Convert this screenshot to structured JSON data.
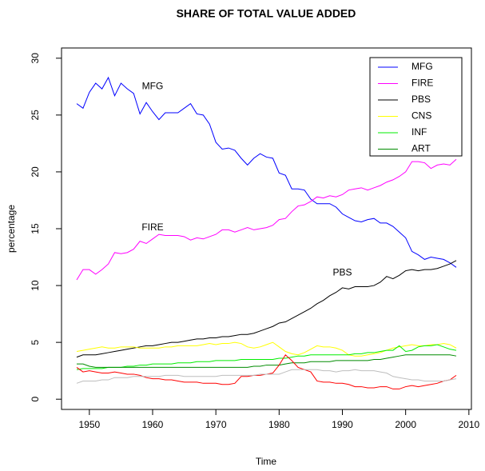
{
  "chart_data": {
    "type": "line",
    "title": "SHARE OF TOTAL VALUE ADDED",
    "x_label": "Time",
    "y_label": "percentage",
    "x": [
      1948,
      1949,
      1950,
      1951,
      1952,
      1953,
      1954,
      1955,
      1956,
      1957,
      1958,
      1959,
      1960,
      1961,
      1962,
      1963,
      1964,
      1965,
      1966,
      1967,
      1968,
      1969,
      1970,
      1971,
      1972,
      1973,
      1974,
      1975,
      1976,
      1977,
      1978,
      1979,
      1980,
      1981,
      1982,
      1983,
      1984,
      1985,
      1986,
      1987,
      1988,
      1989,
      1990,
      1991,
      1992,
      1993,
      1994,
      1995,
      1996,
      1997,
      1998,
      1999,
      2000,
      2001,
      2002,
      2003,
      2004,
      2005,
      2006,
      2007,
      2008
    ],
    "series": [
      {
        "name": "MFG",
        "color": "#0000ff",
        "values": [
          26.0,
          25.6,
          27.0,
          27.8,
          27.3,
          28.3,
          26.7,
          27.8,
          27.3,
          26.9,
          25.1,
          26.1,
          25.3,
          24.6,
          25.2,
          25.2,
          25.2,
          25.6,
          26.0,
          25.1,
          25.0,
          24.2,
          22.6,
          22.0,
          22.1,
          21.9,
          21.2,
          20.6,
          21.2,
          21.6,
          21.3,
          21.2,
          19.9,
          19.7,
          18.5,
          18.5,
          18.4,
          17.6,
          17.2,
          17.2,
          17.2,
          16.9,
          16.3,
          16.0,
          15.7,
          15.6,
          15.8,
          15.9,
          15.5,
          15.5,
          15.2,
          14.7,
          14.2,
          13.0,
          12.7,
          12.3,
          12.5,
          12.4,
          12.3,
          12.0,
          11.6
        ]
      },
      {
        "name": "FIRE",
        "color": "#ff00ff",
        "values": [
          10.5,
          11.4,
          11.4,
          11.0,
          11.4,
          11.9,
          12.9,
          12.8,
          12.9,
          13.2,
          13.9,
          13.7,
          14.1,
          14.5,
          14.4,
          14.4,
          14.4,
          14.3,
          14.0,
          14.2,
          14.1,
          14.3,
          14.5,
          14.9,
          14.9,
          14.7,
          14.9,
          15.1,
          14.9,
          15.0,
          15.1,
          15.3,
          15.8,
          15.9,
          16.5,
          17.0,
          17.1,
          17.4,
          17.8,
          17.7,
          17.9,
          17.8,
          18.0,
          18.4,
          18.5,
          18.6,
          18.4,
          18.6,
          18.8,
          19.1,
          19.3,
          19.6,
          20.0,
          20.9,
          20.9,
          20.8,
          20.3,
          20.6,
          20.7,
          20.6,
          21.1
        ]
      },
      {
        "name": "PBS",
        "color": "#000000",
        "values": [
          3.7,
          3.9,
          3.9,
          3.9,
          4.0,
          4.1,
          4.2,
          4.3,
          4.4,
          4.5,
          4.6,
          4.7,
          4.7,
          4.8,
          4.9,
          5.0,
          5.0,
          5.1,
          5.2,
          5.3,
          5.3,
          5.4,
          5.4,
          5.5,
          5.5,
          5.6,
          5.7,
          5.7,
          5.8,
          6.0,
          6.2,
          6.4,
          6.7,
          6.8,
          7.1,
          7.4,
          7.7,
          8.0,
          8.4,
          8.7,
          9.1,
          9.4,
          9.8,
          9.7,
          9.9,
          9.9,
          9.9,
          10.0,
          10.3,
          10.8,
          10.6,
          10.9,
          11.3,
          11.4,
          11.3,
          11.4,
          11.4,
          11.5,
          11.7,
          11.9,
          12.2
        ]
      },
      {
        "name": "CNS",
        "color": "#ffff00",
        "values": [
          4.2,
          4.3,
          4.4,
          4.5,
          4.6,
          4.5,
          4.5,
          4.6,
          4.6,
          4.6,
          4.5,
          4.5,
          4.5,
          4.5,
          4.6,
          4.6,
          4.7,
          4.7,
          4.7,
          4.7,
          4.8,
          4.9,
          4.8,
          4.9,
          4.9,
          5.0,
          4.9,
          4.6,
          4.5,
          4.6,
          4.8,
          5.0,
          4.6,
          4.2,
          4.0,
          3.9,
          4.1,
          4.4,
          4.7,
          4.6,
          4.6,
          4.5,
          4.3,
          3.9,
          3.8,
          3.8,
          3.9,
          4.0,
          4.1,
          4.3,
          4.5,
          4.6,
          4.7,
          4.8,
          4.7,
          4.7,
          4.8,
          4.8,
          4.9,
          4.8,
          4.5
        ]
      },
      {
        "name": "INF",
        "color": "#00ee00",
        "values": [
          2.6,
          2.7,
          2.7,
          2.7,
          2.7,
          2.8,
          2.8,
          2.8,
          2.9,
          2.9,
          3.0,
          3.0,
          3.1,
          3.1,
          3.1,
          3.1,
          3.2,
          3.2,
          3.2,
          3.3,
          3.3,
          3.3,
          3.4,
          3.4,
          3.4,
          3.4,
          3.5,
          3.5,
          3.5,
          3.5,
          3.5,
          3.5,
          3.6,
          3.6,
          3.7,
          3.8,
          3.8,
          3.9,
          3.9,
          3.9,
          3.9,
          3.9,
          3.9,
          3.9,
          4.0,
          4.0,
          4.1,
          4.1,
          4.2,
          4.3,
          4.3,
          4.7,
          4.2,
          4.3,
          4.6,
          4.7,
          4.7,
          4.8,
          4.6,
          4.4,
          4.3
        ]
      },
      {
        "name": "ART",
        "color": "#008b00",
        "values": [
          3.1,
          3.1,
          2.9,
          2.8,
          2.8,
          2.8,
          2.8,
          2.8,
          2.8,
          2.8,
          2.8,
          2.8,
          2.8,
          2.8,
          2.8,
          2.8,
          2.8,
          2.8,
          2.8,
          2.8,
          2.8,
          2.8,
          2.8,
          2.8,
          2.8,
          2.8,
          2.8,
          2.8,
          2.9,
          2.9,
          3.0,
          3.0,
          3.0,
          3.1,
          3.2,
          3.2,
          3.2,
          3.3,
          3.3,
          3.3,
          3.3,
          3.4,
          3.4,
          3.4,
          3.4,
          3.4,
          3.4,
          3.5,
          3.5,
          3.6,
          3.7,
          3.8,
          3.9,
          3.9,
          3.9,
          3.9,
          3.9,
          3.9,
          3.9,
          3.9,
          3.8
        ]
      },
      {
        "color": "#ff0000",
        "values": [
          2.8,
          2.4,
          2.5,
          2.4,
          2.3,
          2.3,
          2.4,
          2.3,
          2.2,
          2.2,
          2.1,
          1.9,
          1.8,
          1.8,
          1.7,
          1.7,
          1.6,
          1.5,
          1.5,
          1.5,
          1.4,
          1.4,
          1.4,
          1.3,
          1.3,
          1.4,
          2.0,
          2.0,
          2.1,
          2.1,
          2.2,
          2.3,
          3.0,
          3.9,
          3.4,
          2.8,
          2.6,
          2.4,
          1.6,
          1.5,
          1.5,
          1.4,
          1.4,
          1.3,
          1.1,
          1.1,
          1.0,
          1.0,
          1.1,
          1.1,
          0.9,
          0.9,
          1.1,
          1.2,
          1.1,
          1.2,
          1.3,
          1.4,
          1.6,
          1.7,
          2.1
        ]
      },
      {
        "color": "#bebebe",
        "values": [
          1.4,
          1.6,
          1.6,
          1.6,
          1.7,
          1.7,
          1.9,
          1.9,
          1.9,
          2.0,
          2.0,
          2.0,
          2.0,
          2.0,
          2.1,
          2.1,
          2.1,
          2.0,
          2.0,
          2.0,
          2.0,
          2.0,
          2.0,
          2.1,
          2.1,
          2.1,
          2.1,
          2.1,
          2.1,
          2.2,
          2.2,
          2.2,
          2.2,
          2.4,
          2.6,
          2.6,
          2.6,
          2.6,
          2.6,
          2.5,
          2.5,
          2.4,
          2.5,
          2.5,
          2.6,
          2.5,
          2.5,
          2.5,
          2.4,
          2.3,
          2.0,
          1.9,
          1.8,
          1.7,
          1.7,
          1.6,
          1.6,
          1.6,
          1.6,
          1.7,
          1.8
        ]
      }
    ],
    "annotations": [
      {
        "text": "MFG",
        "x": 1960,
        "y": 27.5
      },
      {
        "text": "FIRE",
        "x": 1960,
        "y": 15.1
      },
      {
        "text": "PBS",
        "x": 1990,
        "y": 11.1
      }
    ],
    "xlim": [
      1945.6,
      2010.4
    ],
    "ylim": [
      -0.9,
      30.9
    ],
    "xticks": [
      1950,
      1960,
      1970,
      1980,
      1990,
      2000,
      2010
    ],
    "yticks": [
      0,
      5,
      10,
      15,
      20,
      25,
      30
    ],
    "legend": "topright"
  }
}
